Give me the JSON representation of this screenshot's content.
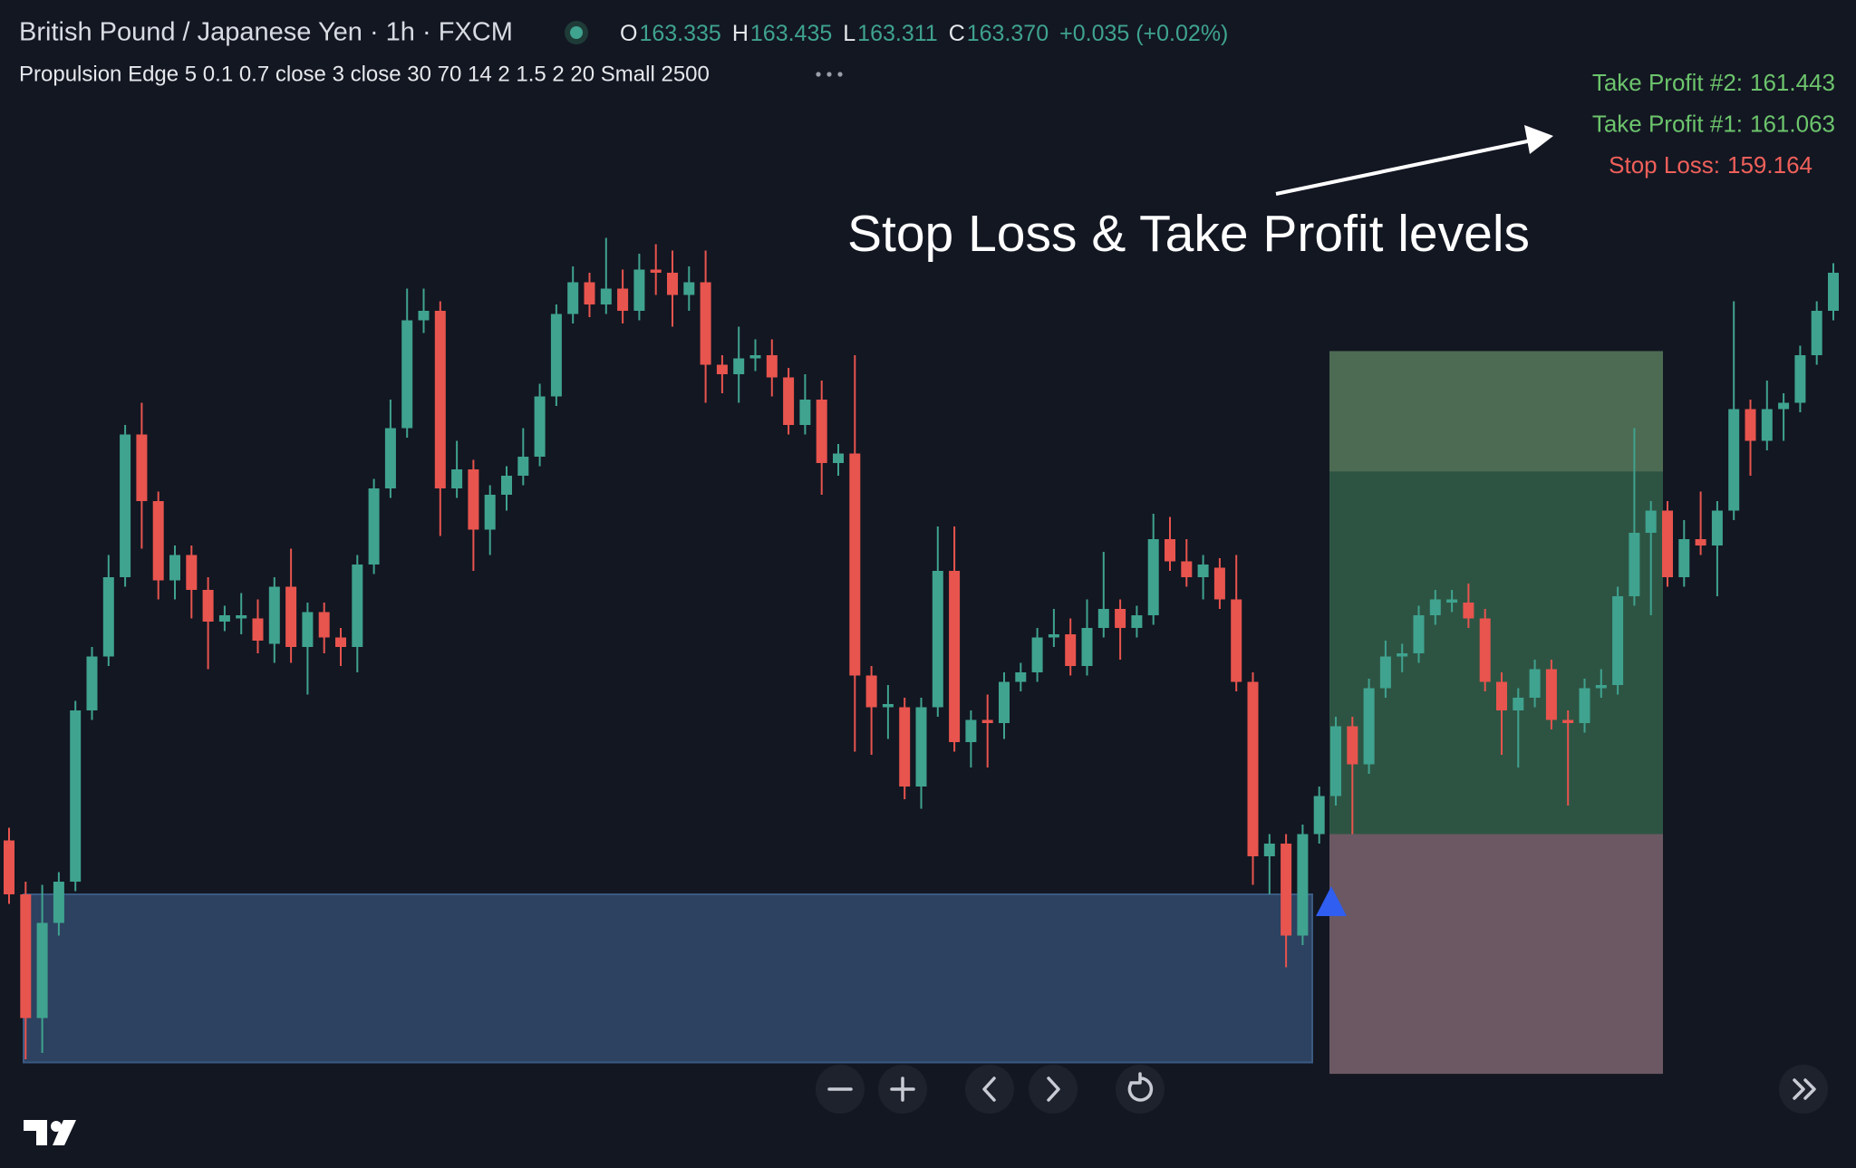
{
  "header": {
    "title": "British Pound / Japanese Yen · 1h · FXCM",
    "ohlc": [
      {
        "label": "O",
        "value": "163.335"
      },
      {
        "label": "H",
        "value": "163.435"
      },
      {
        "label": "L",
        "value": "163.311"
      },
      {
        "label": "C",
        "value": "163.370"
      }
    ],
    "change": "+0.035 (+0.02%)",
    "indicator": "Propulsion Edge 5 0.1 0.7 close 3 close 30 70 14 2 1.5 2 20 Small 2500"
  },
  "chart_data": {
    "type": "candlestick",
    "ylim": [
      159.15,
      162.25
    ],
    "up_color": "#3fa38f",
    "down_color": "#e8544e",
    "annotation": "Stop Loss & Take Profit levels",
    "levels": {
      "take_profit_2": {
        "label": "Take Profit #2:",
        "value": 161.443,
        "color": "#6cc46c"
      },
      "take_profit_1": {
        "label": "Take Profit #1:",
        "value": 161.063,
        "color": "#6cc46c"
      },
      "stop_loss": {
        "label": "Stop Loss:",
        "value": 159.164,
        "color": "#f0605a"
      },
      "entry": 159.92
    },
    "zone": {
      "top": 159.73,
      "bottom": 159.2,
      "color": "#2c4260"
    },
    "open": [
      159.9,
      159.73,
      159.34,
      159.64,
      159.77,
      160.31,
      160.48,
      160.73,
      161.18,
      160.97,
      160.72,
      160.8,
      160.69,
      160.59,
      160.6,
      160.6,
      160.52,
      160.7,
      160.51,
      160.62,
      160.54,
      160.51,
      160.77,
      161.01,
      161.2,
      161.54,
      161.57,
      161.01,
      161.07,
      160.88,
      160.99,
      161.05,
      161.11,
      161.3,
      161.56,
      161.66,
      161.59,
      161.64,
      161.57,
      161.7,
      161.69,
      161.62,
      161.66,
      161.4,
      161.37,
      161.42,
      161.43,
      161.36,
      161.21,
      161.29,
      161.09,
      161.12,
      160.42,
      160.32,
      160.32,
      160.07,
      160.32,
      160.75,
      160.21,
      160.28,
      160.27,
      160.4,
      160.43,
      160.54,
      160.55,
      160.45,
      160.57,
      160.63,
      160.57,
      160.61,
      160.85,
      160.78,
      160.73,
      160.76,
      160.66,
      160.4,
      159.85,
      159.89,
      159.6,
      159.92,
      160.04,
      160.26,
      160.14,
      160.38,
      160.48,
      160.49,
      160.61,
      160.65,
      160.65,
      160.6,
      160.4,
      160.31,
      160.35,
      160.44,
      160.28,
      160.27,
      160.38,
      160.39,
      160.67,
      160.87,
      160.94,
      160.73,
      160.85,
      160.83,
      160.94,
      161.26,
      161.16,
      161.26,
      161.28,
      161.43,
      161.57
    ],
    "high": [
      159.94,
      159.77,
      159.76,
      159.8,
      160.34,
      160.51,
      160.8,
      161.21,
      161.28,
      161.0,
      160.83,
      160.83,
      160.73,
      160.64,
      160.68,
      160.66,
      160.73,
      160.82,
      160.65,
      160.65,
      160.57,
      160.8,
      161.04,
      161.29,
      161.64,
      161.64,
      161.6,
      161.16,
      161.1,
      161.02,
      161.08,
      161.2,
      161.34,
      161.59,
      161.71,
      161.69,
      161.8,
      161.7,
      161.75,
      161.78,
      161.76,
      161.71,
      161.76,
      161.43,
      161.52,
      161.48,
      161.48,
      161.39,
      161.37,
      161.35,
      161.15,
      161.43,
      160.45,
      160.39,
      160.35,
      160.35,
      160.89,
      160.89,
      160.31,
      160.36,
      160.43,
      160.46,
      160.57,
      160.63,
      160.6,
      160.66,
      160.81,
      160.66,
      160.64,
      160.93,
      160.92,
      160.85,
      160.8,
      160.79,
      160.8,
      160.43,
      159.92,
      159.92,
      159.95,
      160.07,
      160.29,
      160.29,
      160.41,
      160.53,
      160.52,
      160.64,
      160.69,
      160.69,
      160.71,
      160.63,
      160.43,
      160.38,
      160.47,
      160.47,
      160.31,
      160.41,
      160.44,
      160.7,
      161.2,
      160.97,
      160.97,
      160.91,
      161.0,
      160.97,
      161.6,
      161.29,
      161.35,
      161.31,
      161.46,
      161.6,
      161.72
    ],
    "low": [
      159.7,
      159.21,
      159.23,
      159.6,
      159.74,
      160.28,
      160.45,
      160.7,
      160.82,
      160.66,
      160.66,
      160.6,
      160.44,
      160.56,
      160.55,
      160.49,
      160.46,
      160.46,
      160.36,
      160.49,
      160.45,
      160.43,
      160.74,
      160.98,
      161.17,
      161.5,
      160.86,
      160.98,
      160.75,
      160.8,
      160.94,
      161.02,
      161.08,
      161.27,
      161.53,
      161.55,
      161.56,
      161.53,
      161.54,
      161.62,
      161.52,
      161.57,
      161.28,
      161.31,
      161.28,
      161.38,
      161.3,
      161.18,
      161.18,
      160.99,
      161.05,
      160.18,
      160.17,
      160.22,
      160.03,
      160.0,
      160.29,
      160.18,
      160.13,
      160.13,
      160.22,
      160.37,
      160.4,
      160.51,
      160.42,
      160.42,
      160.54,
      160.47,
      160.54,
      160.58,
      160.75,
      160.7,
      160.66,
      160.63,
      160.37,
      159.76,
      159.73,
      159.5,
      159.57,
      159.89,
      160.01,
      159.92,
      160.11,
      160.35,
      160.43,
      160.46,
      160.58,
      160.62,
      160.57,
      160.37,
      160.17,
      160.13,
      160.32,
      160.25,
      160.01,
      160.24,
      160.35,
      160.36,
      160.64,
      160.61,
      160.7,
      160.7,
      160.8,
      160.67,
      160.91,
      161.05,
      161.13,
      161.16,
      161.25,
      161.4,
      161.54
    ],
    "close": [
      159.73,
      159.34,
      159.64,
      159.77,
      160.31,
      160.48,
      160.73,
      161.18,
      160.97,
      160.72,
      160.8,
      160.69,
      160.59,
      160.61,
      160.61,
      160.53,
      160.7,
      160.51,
      160.62,
      160.54,
      160.51,
      160.77,
      161.01,
      161.2,
      161.54,
      161.57,
      161.01,
      161.07,
      160.88,
      160.99,
      161.05,
      161.11,
      161.3,
      161.56,
      161.66,
      161.59,
      161.64,
      161.57,
      161.7,
      161.69,
      161.62,
      161.66,
      161.4,
      161.37,
      161.42,
      161.43,
      161.36,
      161.21,
      161.29,
      161.09,
      161.12,
      160.42,
      160.32,
      160.33,
      160.07,
      160.32,
      160.75,
      160.21,
      160.28,
      160.27,
      160.4,
      160.43,
      160.54,
      160.55,
      160.45,
      160.57,
      160.63,
      160.57,
      160.61,
      160.85,
      160.78,
      160.73,
      160.77,
      160.66,
      160.4,
      159.85,
      159.89,
      159.6,
      159.92,
      160.04,
      160.26,
      160.14,
      160.38,
      160.48,
      160.49,
      160.61,
      160.66,
      160.66,
      160.6,
      160.4,
      160.31,
      160.35,
      160.44,
      160.28,
      160.27,
      160.38,
      160.39,
      160.67,
      160.87,
      160.94,
      160.73,
      160.85,
      160.83,
      160.94,
      161.26,
      161.16,
      161.26,
      161.28,
      161.43,
      161.57,
      161.69
    ]
  }
}
